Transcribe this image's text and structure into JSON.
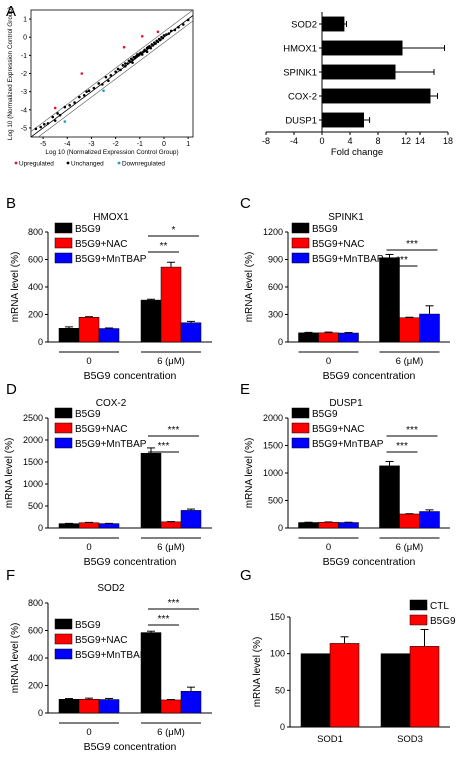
{
  "panel_letters": [
    "A",
    "B",
    "C",
    "D",
    "E",
    "F",
    "G"
  ],
  "chart_data": [
    {
      "panel": "A",
      "type": "scatter",
      "xlabel": "Log 10 (Normalized Expression Control Group)",
      "ylabel": "Log 10 (Normalized Expression Control Group)",
      "xlim": [
        -5.5,
        1.2
      ],
      "ylim": [
        -5.5,
        1.5
      ],
      "x_ticks": [
        "-5",
        "-4",
        "-3",
        "-2",
        "-1",
        "0",
        "1"
      ],
      "y_ticks": [
        "-5",
        "-4",
        "-3",
        "-2",
        "-1",
        "0",
        "1"
      ],
      "legend": [
        {
          "label": "Upregulated",
          "color": "#e8112d"
        },
        {
          "label": "Unchanged",
          "color": "#000000"
        },
        {
          "label": "Downregulated",
          "color": "#1f9bd7"
        }
      ],
      "boundary_fold": 2,
      "points": {
        "unchanged": [
          [
            -5.3,
            -5.05
          ],
          [
            -5.1,
            -4.95
          ],
          [
            -4.95,
            -4.8
          ],
          [
            -4.8,
            -4.75
          ],
          [
            -4.6,
            -4.4
          ],
          [
            -4.4,
            -4.2
          ],
          [
            -4.3,
            -4.3
          ],
          [
            -4.1,
            -3.85
          ],
          [
            -3.9,
            -3.75
          ],
          [
            -3.7,
            -3.6
          ],
          [
            -3.5,
            -3.3
          ],
          [
            -3.3,
            -3.2
          ],
          [
            -3.1,
            -2.95
          ],
          [
            -2.9,
            -2.8
          ],
          [
            -2.7,
            -2.55
          ],
          [
            -2.55,
            -2.6
          ],
          [
            -2.4,
            -2.2
          ],
          [
            -2.2,
            -2.1
          ],
          [
            -2.0,
            -1.9
          ],
          [
            -1.9,
            -1.75
          ],
          [
            -1.8,
            -1.8
          ],
          [
            -1.7,
            -1.55
          ],
          [
            -1.6,
            -1.45
          ],
          [
            -1.5,
            -1.45
          ],
          [
            -1.45,
            -1.3
          ],
          [
            -1.4,
            -1.35
          ],
          [
            -1.35,
            -1.2
          ],
          [
            -1.3,
            -1.25
          ],
          [
            -1.25,
            -1.1
          ],
          [
            -1.2,
            -1.15
          ],
          [
            -1.15,
            -1.05
          ],
          [
            -1.1,
            -0.95
          ],
          [
            -1.05,
            -1.0
          ],
          [
            -1.0,
            -0.9
          ],
          [
            -0.95,
            -0.85
          ],
          [
            -0.9,
            -0.95
          ],
          [
            -0.85,
            -0.8
          ],
          [
            -0.8,
            -0.7
          ],
          [
            -0.75,
            -0.75
          ],
          [
            -0.7,
            -0.6
          ],
          [
            -0.65,
            -0.55
          ],
          [
            -0.6,
            -0.5
          ],
          [
            -0.55,
            -0.6
          ],
          [
            -0.5,
            -0.4
          ],
          [
            -0.45,
            -0.45
          ],
          [
            -0.4,
            -0.3
          ],
          [
            -0.35,
            -0.35
          ],
          [
            -0.3,
            -0.2
          ],
          [
            -0.25,
            -0.25
          ],
          [
            -0.2,
            -0.1
          ],
          [
            -0.15,
            -0.15
          ],
          [
            -0.1,
            0.0
          ],
          [
            -0.05,
            -0.05
          ],
          [
            0.0,
            0.1
          ],
          [
            0.1,
            0.15
          ],
          [
            0.2,
            0.2
          ],
          [
            0.3,
            0.35
          ],
          [
            0.45,
            0.4
          ],
          [
            0.6,
            0.55
          ],
          [
            0.8,
            0.7
          ],
          [
            1.0,
            0.95
          ],
          [
            -1.6,
            -1.6
          ],
          [
            -1.3,
            -1.4
          ],
          [
            -0.7,
            -0.8
          ],
          [
            -2.3,
            -2.4
          ],
          [
            -3.2,
            -3.0
          ],
          [
            -4.5,
            -4.6
          ]
        ],
        "upregulated": [
          [
            -3.4,
            -2.0
          ],
          [
            -1.65,
            -0.55
          ],
          [
            -0.9,
            0.05
          ],
          [
            -0.25,
            0.3
          ],
          [
            -4.5,
            -3.9
          ]
        ],
        "downregulated": [
          [
            -4.1,
            -4.65
          ],
          [
            -2.5,
            -2.95
          ]
        ]
      }
    },
    {
      "panel": "A",
      "type": "bar",
      "orientation": "horizontal",
      "categories": [
        "SOD2",
        "HMOX1",
        "SPINK1",
        "COX-2",
        "DUSP1"
      ],
      "values": [
        3.2,
        11.5,
        10.5,
        15.5,
        6.0
      ],
      "errors": [
        0.3,
        6.0,
        5.5,
        1.0,
        0.8
      ],
      "xlabel": "Fold change",
      "xlim": [
        -8,
        18
      ],
      "x_ticks": [
        -8,
        -4,
        0,
        4,
        8,
        12,
        14,
        18
      ]
    },
    {
      "panel": "B",
      "type": "bar",
      "title": "HMOX1",
      "categories": [
        "0",
        "6 (μM)"
      ],
      "xlabel": "B5G9 concentration",
      "ylabel": "mRNA level (%)",
      "ylim": [
        0,
        800
      ],
      "y_ticks": [
        0,
        200,
        400,
        600,
        800
      ],
      "series": [
        {
          "name": "B5G9",
          "color": "#000000",
          "values": [
            100,
            305
          ],
          "errors": [
            10,
            6
          ]
        },
        {
          "name": "B5G9+NAC",
          "color": "#ff0000",
          "values": [
            180,
            545
          ],
          "errors": [
            4,
            35
          ]
        },
        {
          "name": "B5G9+MnTBAP",
          "color": "#0000ff",
          "values": [
            98,
            140
          ],
          "errors": [
            4,
            10
          ]
        }
      ],
      "significance": [
        {
          "label": "*",
          "from": 0,
          "to": 2
        },
        {
          "label": "**",
          "from": 0,
          "to": 1
        }
      ]
    },
    {
      "panel": "C",
      "type": "bar",
      "title": "SPINK1",
      "categories": [
        "0",
        "6 (μM)"
      ],
      "xlabel": "B5G9 concentration",
      "ylabel": "mRNA level (%)",
      "ylim": [
        0,
        1200
      ],
      "y_ticks": [
        0,
        300,
        600,
        900,
        1200
      ],
      "series": [
        {
          "name": "B5G9",
          "color": "#000000",
          "values": [
            100,
            920
          ],
          "errors": [
            5,
            35
          ]
        },
        {
          "name": "B5G9+NAC",
          "color": "#ff0000",
          "values": [
            100,
            265
          ],
          "errors": [
            8,
            5
          ]
        },
        {
          "name": "B5G9+MnTBAP",
          "color": "#0000ff",
          "values": [
            98,
            305
          ],
          "errors": [
            5,
            90
          ]
        }
      ],
      "significance": [
        {
          "label": "***",
          "from": 0,
          "to": 2
        },
        {
          "label": "***",
          "from": 0,
          "to": 1
        }
      ]
    },
    {
      "panel": "D",
      "type": "bar",
      "title": "COX-2",
      "categories": [
        "0",
        "6 (μM)"
      ],
      "xlabel": "B5G9 concentration",
      "ylabel": "mRNA level (%)",
      "ylim": [
        0,
        2500
      ],
      "y_ticks": [
        0,
        500,
        1000,
        1500,
        2000,
        2500
      ],
      "series": [
        {
          "name": "B5G9",
          "color": "#000000",
          "values": [
            100,
            1700
          ],
          "errors": [
            5,
            120
          ]
        },
        {
          "name": "B5G9+NAC",
          "color": "#ff0000",
          "values": [
            120,
            140
          ],
          "errors": [
            8,
            5
          ]
        },
        {
          "name": "B5G9+MnTBAP",
          "color": "#0000ff",
          "values": [
            100,
            400
          ],
          "errors": [
            5,
            30
          ]
        }
      ],
      "significance": [
        {
          "label": "***",
          "from": 0,
          "to": 2
        },
        {
          "label": "***",
          "from": 0,
          "to": 1
        }
      ]
    },
    {
      "panel": "E",
      "type": "bar",
      "title": "DUSP1",
      "categories": [
        "0",
        "6 (μM)"
      ],
      "xlabel": "B5G9 concentration",
      "ylabel": "mRNA level (%)",
      "ylim": [
        0,
        2000
      ],
      "y_ticks": [
        0,
        500,
        1000,
        1500,
        2000
      ],
      "series": [
        {
          "name": "B5G9",
          "color": "#000000",
          "values": [
            100,
            1130
          ],
          "errors": [
            5,
            80
          ]
        },
        {
          "name": "B5G9+NAC",
          "color": "#ff0000",
          "values": [
            105,
            255
          ],
          "errors": [
            5,
            5
          ]
        },
        {
          "name": "B5G9+MnTBAP",
          "color": "#0000ff",
          "values": [
            100,
            300
          ],
          "errors": [
            5,
            30
          ]
        }
      ],
      "significance": [
        {
          "label": "***",
          "from": 0,
          "to": 2
        },
        {
          "label": "***",
          "from": 0,
          "to": 1
        }
      ]
    },
    {
      "panel": "F",
      "type": "bar",
      "title": "SOD2",
      "categories": [
        "0",
        "6 (μM)"
      ],
      "xlabel": "B5G9 concentration",
      "ylabel": "mRNA level (%)",
      "ylim": [
        0,
        800
      ],
      "y_ticks": [
        0,
        200,
        400,
        600,
        800
      ],
      "series": [
        {
          "name": "B5G9",
          "color": "#000000",
          "values": [
            100,
            585
          ],
          "errors": [
            5,
            10
          ]
        },
        {
          "name": "B5G9+NAC",
          "color": "#ff0000",
          "values": [
            100,
            95
          ],
          "errors": [
            8,
            3
          ]
        },
        {
          "name": "B5G9+MnTBAP",
          "color": "#0000ff",
          "values": [
            98,
            158
          ],
          "errors": [
            8,
            30
          ]
        }
      ],
      "significance": [
        {
          "label": "***",
          "from": 0,
          "to": 2
        },
        {
          "label": "***",
          "from": 0,
          "to": 1
        }
      ]
    },
    {
      "panel": "G",
      "type": "bar",
      "categories": [
        "SOD1",
        "SOD3"
      ],
      "xlabel": "",
      "ylabel": "mRNA level (%)",
      "ylim": [
        0,
        150
      ],
      "y_ticks": [
        0,
        50,
        100,
        150
      ],
      "series": [
        {
          "name": "CTL",
          "color": "#000000",
          "values": [
            100,
            100
          ],
          "errors": [
            0,
            0
          ]
        },
        {
          "name": "B5G9",
          "color": "#ff0000",
          "values": [
            114,
            110
          ],
          "errors": [
            9,
            23
          ]
        }
      ],
      "significance": []
    }
  ]
}
